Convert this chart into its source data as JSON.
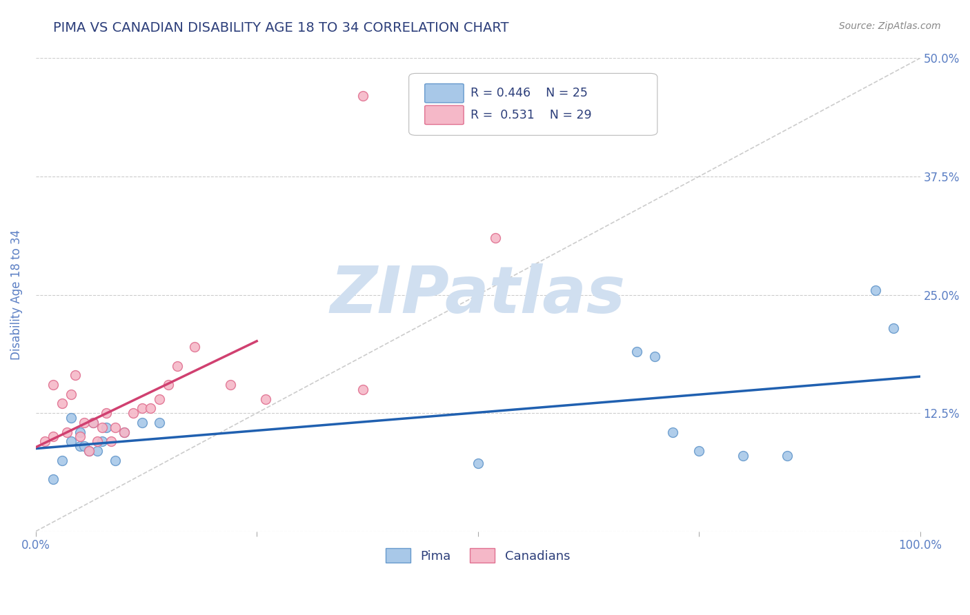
{
  "title": "PIMA VS CANADIAN DISABILITY AGE 18 TO 34 CORRELATION CHART",
  "source_text": "Source: ZipAtlas.com",
  "xlabel": "",
  "ylabel": "Disability Age 18 to 34",
  "xlim": [
    0,
    1.0
  ],
  "ylim": [
    0,
    0.5
  ],
  "xticks": [
    0.0,
    0.25,
    0.5,
    0.75,
    1.0
  ],
  "xtick_labels": [
    "0.0%",
    "",
    "",
    "",
    "100.0%"
  ],
  "ytick_labels": [
    "",
    "12.5%",
    "25.0%",
    "37.5%",
    "50.0%"
  ],
  "yticks": [
    0.0,
    0.125,
    0.25,
    0.375,
    0.5
  ],
  "title_color": "#2c3e7a",
  "axis_color": "#5b7fc4",
  "tick_color": "#5b7fc4",
  "grid_color": "#cccccc",
  "background_color": "#ffffff",
  "watermark_text": "ZIPatlas",
  "watermark_color": "#d0dff0",
  "pima_color": "#a8c8e8",
  "pima_edge_color": "#6699cc",
  "canadian_color": "#f5b8c8",
  "canadian_edge_color": "#e07090",
  "pima_line_color": "#2060b0",
  "canadian_line_color": "#d04070",
  "ref_line_color": "#cccccc",
  "legend_r_pima": "R = 0.446",
  "legend_n_pima": "N = 25",
  "legend_r_canadian": "R =  0.531",
  "legend_n_canadian": "N = 29",
  "pima_x": [
    0.02,
    0.03,
    0.04,
    0.04,
    0.05,
    0.05,
    0.055,
    0.06,
    0.065,
    0.07,
    0.075,
    0.08,
    0.09,
    0.1,
    0.12,
    0.14,
    0.5,
    0.68,
    0.7,
    0.72,
    0.75,
    0.8,
    0.85,
    0.95,
    0.97
  ],
  "pima_y": [
    0.055,
    0.075,
    0.12,
    0.095,
    0.09,
    0.105,
    0.09,
    0.085,
    0.115,
    0.085,
    0.095,
    0.11,
    0.075,
    0.105,
    0.115,
    0.115,
    0.072,
    0.19,
    0.185,
    0.105,
    0.085,
    0.08,
    0.08,
    0.255,
    0.215
  ],
  "canadian_x": [
    0.01,
    0.02,
    0.02,
    0.03,
    0.035,
    0.04,
    0.045,
    0.05,
    0.055,
    0.06,
    0.065,
    0.07,
    0.075,
    0.08,
    0.085,
    0.09,
    0.1,
    0.11,
    0.12,
    0.13,
    0.14,
    0.15,
    0.16,
    0.18,
    0.22,
    0.26,
    0.37,
    0.37,
    0.52
  ],
  "canadian_y": [
    0.095,
    0.1,
    0.155,
    0.135,
    0.105,
    0.145,
    0.165,
    0.1,
    0.115,
    0.085,
    0.115,
    0.095,
    0.11,
    0.125,
    0.095,
    0.11,
    0.105,
    0.125,
    0.13,
    0.13,
    0.14,
    0.155,
    0.175,
    0.195,
    0.155,
    0.14,
    0.15,
    0.46,
    0.31
  ],
  "marker_size": 100
}
